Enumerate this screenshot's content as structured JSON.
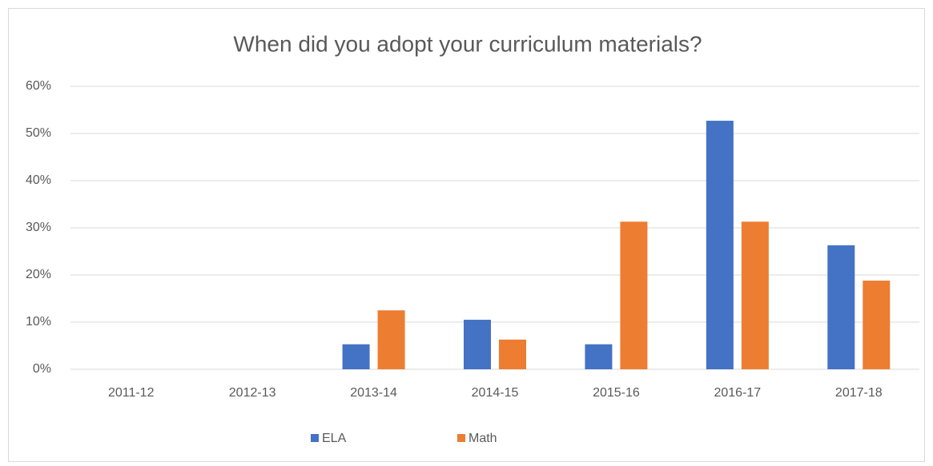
{
  "chart_data": {
    "type": "bar",
    "title": "When did you adopt your curriculum materials?",
    "categories": [
      "2011-12",
      "2012-13",
      "2013-14",
      "2014-15",
      "2015-16",
      "2016-17",
      "2017-18"
    ],
    "series": [
      {
        "name": "ELA",
        "color": "#4472c4",
        "values": [
          0,
          0,
          5.3,
          10.5,
          5.3,
          52.7,
          26.3
        ]
      },
      {
        "name": "Math",
        "color": "#ed7d31",
        "values": [
          0,
          0,
          12.5,
          6.3,
          31.3,
          31.3,
          18.8
        ]
      }
    ],
    "ylim": [
      0,
      60
    ],
    "yticks": [
      {
        "value": 0,
        "label": "0%"
      },
      {
        "value": 10,
        "label": "10%"
      },
      {
        "value": 20,
        "label": "20%"
      },
      {
        "value": 30,
        "label": "30%"
      },
      {
        "value": 40,
        "label": "40%"
      },
      {
        "value": 50,
        "label": "50%"
      },
      {
        "value": 60,
        "label": "60%"
      }
    ],
    "grid": true,
    "legend": "bottom"
  }
}
